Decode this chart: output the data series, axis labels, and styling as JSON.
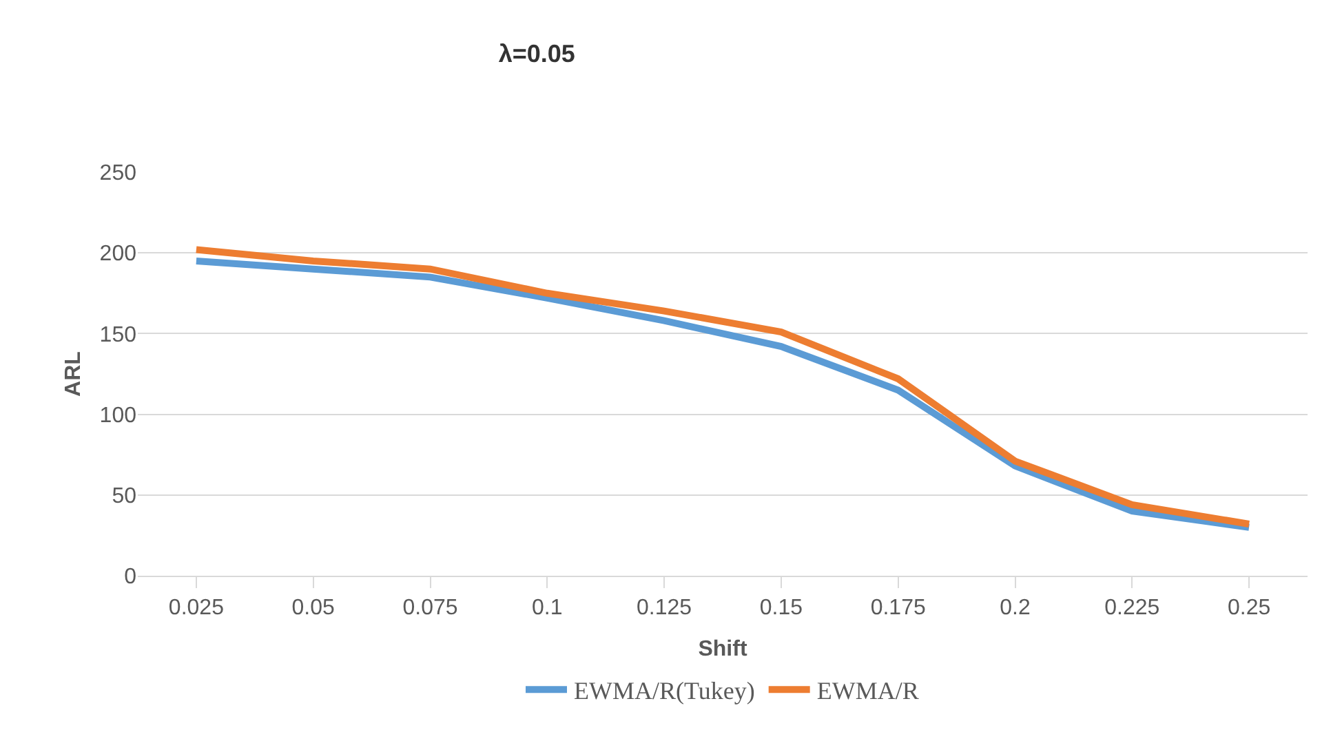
{
  "chart_data": {
    "type": "line",
    "title": "λ=0.05",
    "xlabel": "Shift",
    "ylabel": "ARL",
    "categories": [
      "0.025",
      "0.05",
      "0.075",
      "0.1",
      "0.125",
      "0.15",
      "0.175",
      "0.2",
      "0.225",
      "0.25"
    ],
    "series": [
      {
        "name": "EWMA/R(Tukey)",
        "color": "#5b9bd5",
        "values": [
          195,
          190,
          185,
          172,
          158,
          142,
          115,
          68,
          40,
          30
        ]
      },
      {
        "name": "EWMA/R",
        "color": "#ed7d31",
        "values": [
          202,
          195,
          190,
          175,
          164,
          151,
          122,
          71,
          44,
          32
        ]
      }
    ],
    "ylim": [
      0,
      250
    ],
    "yticks": [
      0,
      50,
      100,
      150,
      200,
      250
    ],
    "grid": "y",
    "legend": "bottom",
    "marker": "none",
    "line_style": "solid"
  }
}
